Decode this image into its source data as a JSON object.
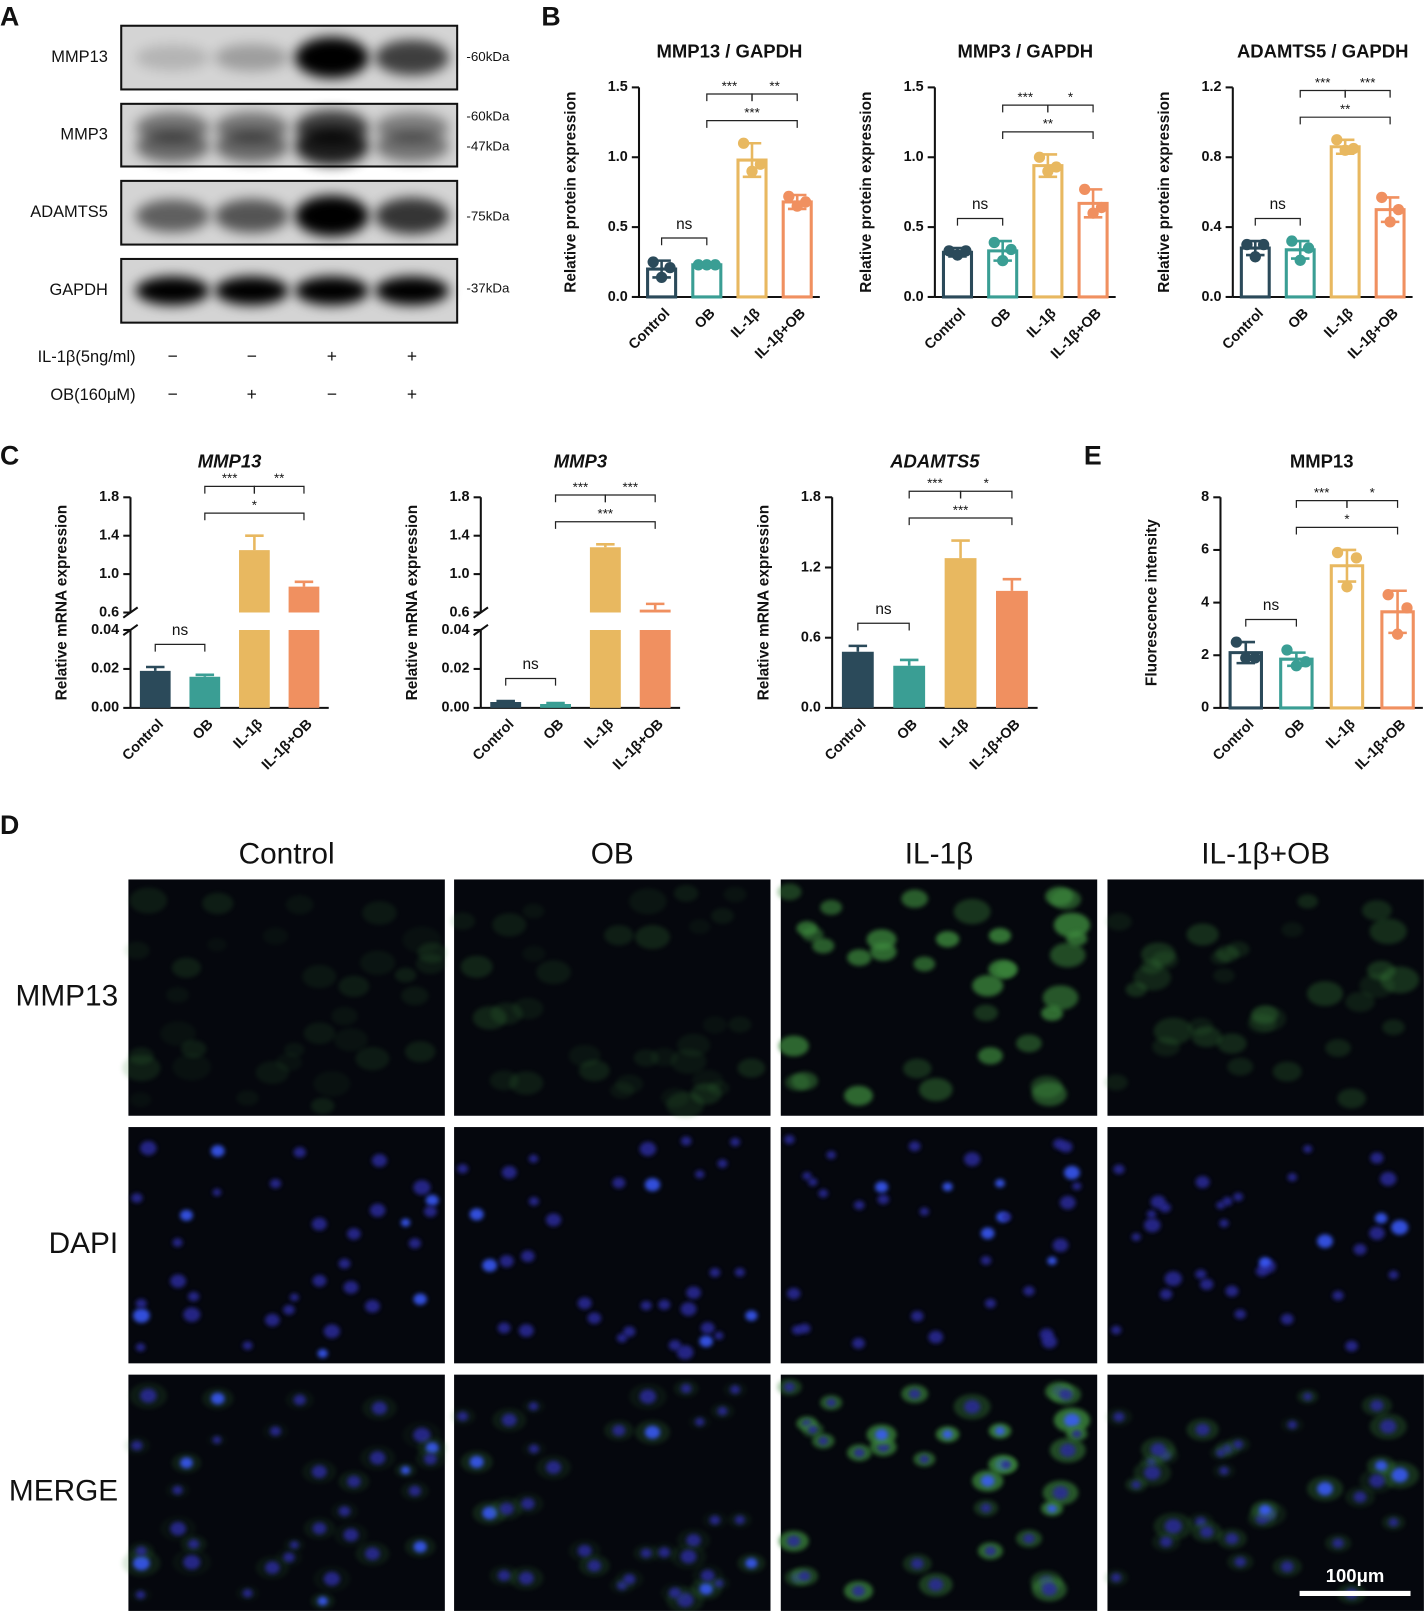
{
  "panel_labels": [
    "A",
    "B",
    "C",
    "D",
    "E"
  ],
  "western_blot": {
    "rows": [
      {
        "label": "MMP13",
        "markers": [
          "-60kDa"
        ]
      },
      {
        "label": "MMP3",
        "markers": [
          "-60kDa",
          "-47kDa"
        ]
      },
      {
        "label": "ADAMTS5",
        "markers": [
          "-75kDa"
        ]
      },
      {
        "label": "GAPDH",
        "markers": [
          "-37kDa"
        ]
      }
    ],
    "treatments": [
      {
        "label": "IL-1β(5ng/ml)",
        "signs": [
          "−",
          "−",
          "+",
          "+"
        ]
      },
      {
        "label": "OB(160μM)",
        "signs": [
          "−",
          "+",
          "−",
          "+"
        ]
      }
    ]
  },
  "chart_data": [
    {
      "type": "bar",
      "title": "MMP13 / GAPDH",
      "ylabel": "Relative protein expression",
      "categories": [
        "Control",
        "OB",
        "IL-1β",
        "IL-1β+OB"
      ],
      "colors": [
        "#2b4a5a",
        "#3a9e94",
        "#e8b860",
        "#f09060"
      ],
      "fill": "hollow",
      "values": [
        0.2,
        0.23,
        0.98,
        0.68
      ],
      "errors": [
        0.06,
        0.01,
        0.12,
        0.05
      ],
      "points": [
        [
          0.25,
          0.14,
          0.21
        ],
        [
          0.23,
          0.23,
          0.23
        ],
        [
          1.1,
          0.9,
          0.95
        ],
        [
          0.72,
          0.65,
          0.68
        ]
      ],
      "ylim": [
        0,
        1.5
      ],
      "yticks": [
        {
          "value": 0,
          "label": "0.0"
        },
        0.5,
        {
          "value": 1,
          "label": "1.0"
        },
        1.5
      ],
      "annotations": [
        {
          "text": "ns",
          "pair": [
            0,
            1
          ]
        },
        {
          "text": "***",
          "pair": [
            1,
            3
          ]
        },
        {
          "text": "***",
          "pair": [
            1,
            2
          ]
        },
        {
          "text": "**",
          "pair": [
            2,
            3
          ]
        }
      ]
    },
    {
      "type": "bar",
      "title": "MMP3 / GAPDH",
      "ylabel": "Relative protein expression",
      "categories": [
        "Control",
        "OB",
        "IL-1β",
        "IL-1β+OB"
      ],
      "colors": [
        "#2b4a5a",
        "#3a9e94",
        "#e8b860",
        "#f09060"
      ],
      "fill": "hollow",
      "values": [
        0.32,
        0.33,
        0.94,
        0.67
      ],
      "errors": [
        0.03,
        0.07,
        0.08,
        0.1
      ],
      "points": [
        [
          0.33,
          0.3,
          0.33
        ],
        [
          0.39,
          0.26,
          0.34
        ],
        [
          1.0,
          0.9,
          0.93
        ],
        [
          0.77,
          0.6,
          0.64
        ]
      ],
      "ylim": [
        0,
        1.5
      ],
      "yticks": [
        {
          "value": 0,
          "label": "0.0"
        },
        0.5,
        {
          "value": 1,
          "label": "1.0"
        },
        1.5
      ],
      "annotations": [
        {
          "text": "ns",
          "pair": [
            0,
            1
          ]
        },
        {
          "text": "**",
          "pair": [
            1,
            3
          ]
        },
        {
          "text": "***",
          "pair": [
            1,
            2
          ]
        },
        {
          "text": "*",
          "pair": [
            2,
            3
          ]
        }
      ]
    },
    {
      "type": "bar",
      "title": "ADAMTS5 / GAPDH",
      "ylabel": "Relative protein expression",
      "categories": [
        "Control",
        "OB",
        "IL-1β",
        "IL-1β+OB"
      ],
      "colors": [
        "#2b4a5a",
        "#3a9e94",
        "#e8b860",
        "#f09060"
      ],
      "fill": "hollow",
      "values": [
        0.28,
        0.27,
        0.86,
        0.5
      ],
      "errors": [
        0.04,
        0.05,
        0.04,
        0.07
      ],
      "points": [
        [
          0.3,
          0.23,
          0.3
        ],
        [
          0.32,
          0.21,
          0.28
        ],
        [
          0.9,
          0.84,
          0.85
        ],
        [
          0.57,
          0.43,
          0.5
        ]
      ],
      "ylim": [
        0,
        1.2
      ],
      "yticks": [
        {
          "value": 0,
          "label": "0.0"
        },
        0.4,
        0.8,
        1.2
      ],
      "annotations": [
        {
          "text": "ns",
          "pair": [
            0,
            1
          ]
        },
        {
          "text": "**",
          "pair": [
            1,
            3
          ]
        },
        {
          "text": "***",
          "pair": [
            1,
            2
          ]
        },
        {
          "text": "***",
          "pair": [
            2,
            3
          ]
        }
      ]
    },
    {
      "type": "bar",
      "title": "MMP13",
      "title_style": "italic",
      "ylabel": "Relative mRNA expression",
      "categories": [
        "Control",
        "OB",
        "IL-1β",
        "IL-1β+OB"
      ],
      "colors": [
        "#2b4a5a",
        "#3a9e94",
        "#e8b860",
        "#f09060"
      ],
      "fill": "solid",
      "values": [
        0.019,
        0.016,
        1.25,
        0.87
      ],
      "errors": [
        0.002,
        0.001,
        0.15,
        0.05
      ],
      "ylim": [
        0,
        1.8
      ],
      "ybreak": [
        0.04,
        0.6
      ],
      "yticks": [
        {
          "value": 0,
          "label": "0.00"
        },
        0.02,
        0.04,
        0.6,
        {
          "value": 1,
          "label": "1.0"
        },
        1.4,
        1.8
      ],
      "annotations": [
        {
          "text": "ns",
          "pair": [
            0,
            1
          ]
        },
        {
          "text": "*",
          "pair": [
            1,
            3
          ]
        },
        {
          "text": "***",
          "pair": [
            1,
            2
          ]
        },
        {
          "text": "**",
          "pair": [
            2,
            3
          ]
        }
      ]
    },
    {
      "type": "bar",
      "title": "MMP3",
      "title_style": "italic",
      "ylabel": "Relative mRNA expression",
      "categories": [
        "Control",
        "OB",
        "IL-1β",
        "IL-1β+OB"
      ],
      "colors": [
        "#2b4a5a",
        "#3a9e94",
        "#e8b860",
        "#f09060"
      ],
      "fill": "solid",
      "values": [
        0.003,
        0.002,
        1.28,
        0.63
      ],
      "errors": [
        0.0005,
        0.0005,
        0.03,
        0.06
      ],
      "ylim": [
        0,
        1.8
      ],
      "ybreak": [
        0.04,
        0.6
      ],
      "yticks": [
        {
          "value": 0,
          "label": "0.00"
        },
        0.02,
        0.04,
        0.6,
        {
          "value": 1,
          "label": "1.0"
        },
        1.4,
        1.8
      ],
      "annotations": [
        {
          "text": "ns",
          "pair": [
            0,
            1
          ]
        },
        {
          "text": "***",
          "pair": [
            1,
            3
          ]
        },
        {
          "text": "***",
          "pair": [
            1,
            2
          ]
        },
        {
          "text": "***",
          "pair": [
            2,
            3
          ]
        }
      ]
    },
    {
      "type": "bar",
      "title": "ADAMTS5",
      "title_style": "italic",
      "ylabel": "Relative mRNA expression",
      "categories": [
        "Control",
        "OB",
        "IL-1β",
        "IL-1β+OB"
      ],
      "colors": [
        "#2b4a5a",
        "#3a9e94",
        "#e8b860",
        "#f09060"
      ],
      "fill": "solid",
      "values": [
        0.48,
        0.36,
        1.28,
        1.0
      ],
      "errors": [
        0.05,
        0.05,
        0.15,
        0.1
      ],
      "ylim": [
        0,
        1.8
      ],
      "yticks": [
        {
          "value": 0,
          "label": "0.0"
        },
        0.6,
        1.2,
        1.8
      ],
      "annotations": [
        {
          "text": "ns",
          "pair": [
            0,
            1
          ]
        },
        {
          "text": "***",
          "pair": [
            1,
            3
          ]
        },
        {
          "text": "***",
          "pair": [
            1,
            2
          ]
        },
        {
          "text": "*",
          "pair": [
            2,
            3
          ]
        }
      ]
    },
    {
      "type": "bar",
      "title": "MMP13",
      "ylabel": "Fluorescence intensity",
      "categories": [
        "Control",
        "OB",
        "IL-1β",
        "IL-1β+OB"
      ],
      "colors": [
        "#2b4a5a",
        "#3a9e94",
        "#e8b860",
        "#f09060"
      ],
      "fill": "hollow",
      "values": [
        2.1,
        1.85,
        5.4,
        3.65
      ],
      "errors": [
        0.4,
        0.25,
        0.6,
        0.8
      ],
      "points": [
        [
          2.5,
          1.9,
          1.9
        ],
        [
          2.2,
          1.6,
          1.75
        ],
        [
          5.9,
          4.6,
          5.7
        ],
        [
          4.3,
          2.8,
          3.8
        ]
      ],
      "ylim": [
        0,
        8
      ],
      "yticks": [
        0,
        2,
        4,
        6,
        8
      ],
      "annotations": [
        {
          "text": "ns",
          "pair": [
            0,
            1
          ]
        },
        {
          "text": "*",
          "pair": [
            1,
            3
          ]
        },
        {
          "text": "***",
          "pair": [
            1,
            2
          ]
        },
        {
          "text": "*",
          "pair": [
            2,
            3
          ]
        }
      ]
    }
  ],
  "immunofluorescence": {
    "columns": [
      "Control",
      "OB",
      "IL-1β",
      "IL-1β+OB"
    ],
    "rows": [
      "MMP13",
      "DAPI",
      "MERGE"
    ],
    "scale_bar": "100μm"
  }
}
